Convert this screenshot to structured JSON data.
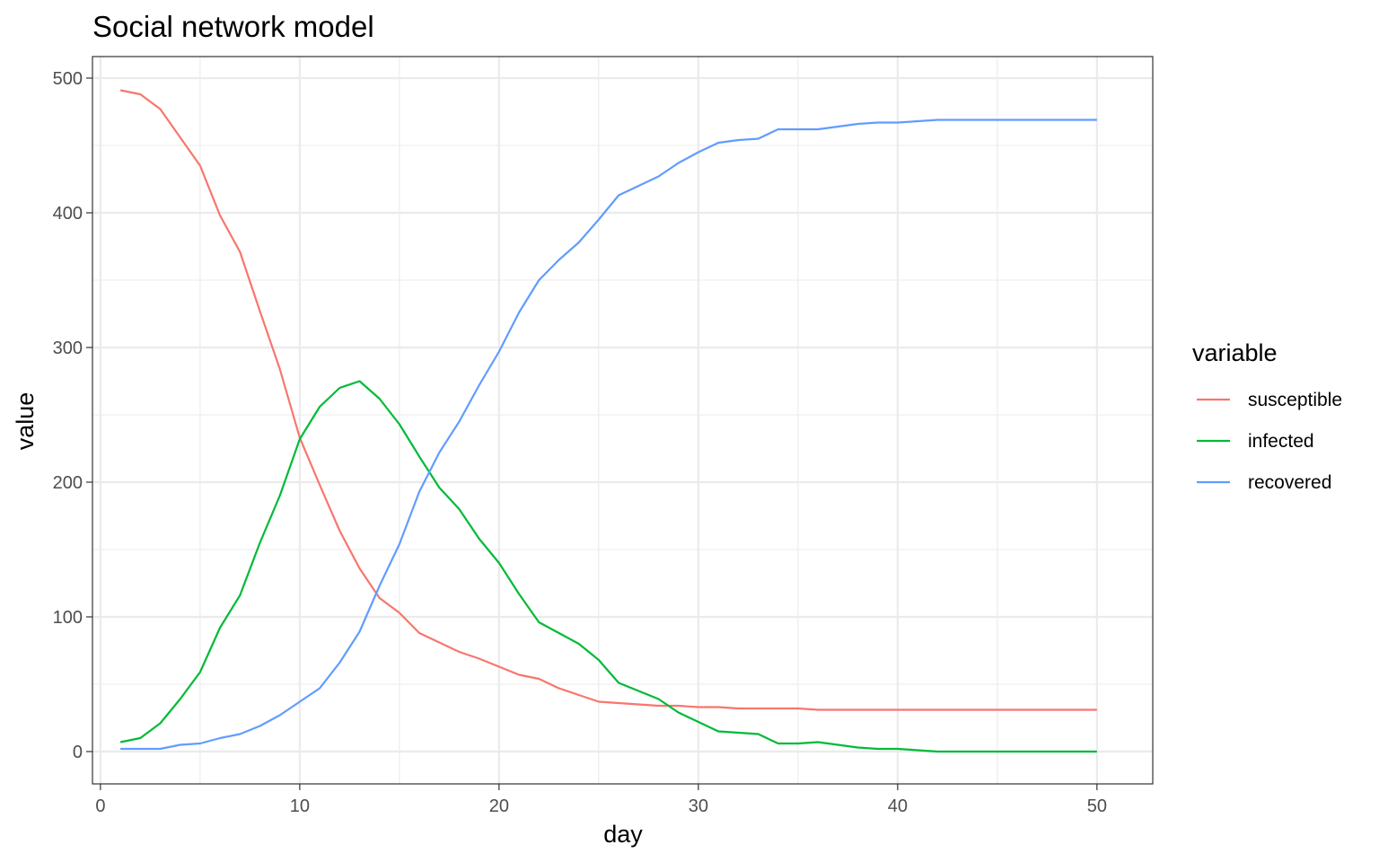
{
  "chart_data": {
    "type": "line",
    "title": "Social network model",
    "xlabel": "day",
    "ylabel": "value",
    "xlim": [
      -0.4,
      52.8
    ],
    "ylim": [
      -24,
      516
    ],
    "x_ticks": [
      0,
      10,
      20,
      30,
      40,
      50
    ],
    "y_ticks": [
      0,
      100,
      200,
      300,
      400,
      500
    ],
    "x_tick_labels": [
      "0",
      "10",
      "20",
      "30",
      "40",
      "50"
    ],
    "y_tick_labels": [
      "0",
      "100",
      "200",
      "300",
      "400",
      "500"
    ],
    "grid": true,
    "legend": {
      "title": "variable",
      "placement": "right"
    },
    "x": [
      1,
      2,
      3,
      4,
      5,
      6,
      7,
      8,
      9,
      10,
      11,
      12,
      13,
      14,
      15,
      16,
      17,
      18,
      19,
      20,
      21,
      22,
      23,
      24,
      25,
      26,
      27,
      28,
      29,
      30,
      31,
      32,
      33,
      34,
      35,
      36,
      37,
      38,
      39,
      40,
      41,
      42,
      43,
      44,
      45,
      46,
      47,
      48,
      49,
      50
    ],
    "series": [
      {
        "name": "susceptible",
        "color": "#f8766d",
        "values": [
          491,
          488,
          477,
          456,
          435,
          398,
          371,
          327,
          284,
          233,
          198,
          164,
          136,
          114,
          103,
          88,
          81,
          74,
          69,
          63,
          57,
          54,
          47,
          42,
          37,
          36,
          35,
          34,
          34,
          33,
          33,
          32,
          32,
          32,
          32,
          31,
          31,
          31,
          31,
          31,
          31,
          31,
          31,
          31,
          31,
          31,
          31,
          31,
          31,
          31
        ]
      },
      {
        "name": "infected",
        "color": "#00ba38",
        "values": [
          7,
          10,
          21,
          39,
          59,
          92,
          116,
          155,
          190,
          232,
          256,
          270,
          275,
          262,
          243,
          219,
          196,
          180,
          158,
          140,
          117,
          96,
          88,
          80,
          68,
          51,
          45,
          39,
          29,
          22,
          15,
          14,
          13,
          6,
          6,
          7,
          5,
          3,
          2,
          2,
          1,
          0,
          0,
          0,
          0,
          0,
          0,
          0,
          0,
          0
        ]
      },
      {
        "name": "recovered",
        "color": "#619cff",
        "values": [
          2,
          2,
          2,
          5,
          6,
          10,
          13,
          19,
          27,
          37,
          47,
          66,
          89,
          123,
          154,
          193,
          222,
          245,
          272,
          297,
          326,
          350,
          365,
          378,
          395,
          413,
          420,
          427,
          437,
          445,
          452,
          454,
          455,
          462,
          462,
          462,
          464,
          466,
          467,
          467,
          468,
          469,
          469,
          469,
          469,
          469,
          469,
          469,
          469,
          469
        ]
      }
    ]
  }
}
